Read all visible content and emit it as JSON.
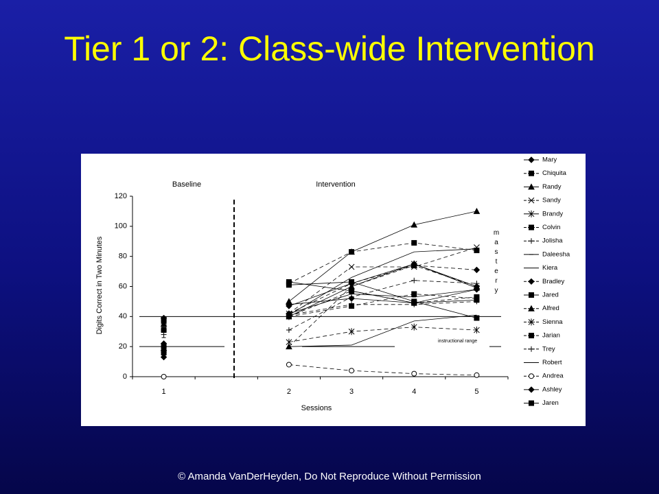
{
  "title": "Tier 1 or 2: Class-wide Intervention",
  "footer": "© Amanda VanDerHeyden, Do Not Reproduce Without Permission",
  "chart_data": {
    "type": "line",
    "y_label": "Digits Correct in Two Minutes",
    "x_label": "Sessions",
    "annotations": {
      "baseline": "Baseline",
      "intervention": "Intervention",
      "mastery": "mastery",
      "instructional": "instructional range"
    },
    "categories": [
      "1",
      null,
      "2",
      "3",
      "4",
      "5"
    ],
    "ylim": [
      0,
      120
    ],
    "yticks": [
      0,
      20,
      40,
      60,
      80,
      100,
      120
    ],
    "reference_lines": [
      40,
      20
    ],
    "color": "#000000",
    "series": [
      {
        "name": "Mary",
        "marker": "diamond",
        "dashed": false,
        "values": [
          39,
          null,
          47,
          62,
          75,
          60
        ]
      },
      {
        "name": "Chiquita",
        "marker": "square",
        "dashed": true,
        "values": [
          37,
          null,
          62,
          83,
          89,
          84
        ]
      },
      {
        "name": "Randy",
        "marker": "triangle",
        "dashed": false,
        "values": [
          35,
          null,
          50,
          83,
          101,
          110
        ]
      },
      {
        "name": "Sandy",
        "marker": "x",
        "dashed": true,
        "values": [
          33,
          null,
          42,
          73,
          73,
          86
        ]
      },
      {
        "name": "Brandy",
        "marker": "star",
        "dashed": false,
        "values": [
          32,
          null,
          40,
          60,
          75,
          59
        ]
      },
      {
        "name": "Colvin",
        "marker": "square",
        "dashed": true,
        "values": [
          31,
          null,
          40,
          47,
          55,
          52
        ]
      },
      {
        "name": "Jolisha",
        "marker": "plus",
        "dashed": true,
        "values": [
          28,
          null,
          31,
          53,
          64,
          62
        ]
      },
      {
        "name": "Daleesha",
        "marker": "dash",
        "dashed": false,
        "values": [
          26,
          null,
          42,
          55,
          53,
          58
        ]
      },
      {
        "name": "Kiera",
        "marker": "none",
        "dashed": false,
        "values": [
          24,
          null,
          41,
          66,
          83,
          85
        ]
      },
      {
        "name": "Bradley",
        "marker": "diamond",
        "dashed": true,
        "values": [
          22,
          null,
          42,
          62,
          74,
          71
        ]
      },
      {
        "name": "Jared",
        "marker": "square",
        "dashed": false,
        "values": [
          20,
          null,
          61,
          63,
          50,
          39
        ]
      },
      {
        "name": "Alfred",
        "marker": "triangle",
        "dashed": true,
        "values": [
          19,
          null,
          20,
          60,
          74,
          60
        ]
      },
      {
        "name": "Sienna",
        "marker": "star",
        "dashed": true,
        "values": [
          18,
          null,
          23,
          30,
          33,
          31
        ]
      },
      {
        "name": "Jarian",
        "marker": "square",
        "dashed": true,
        "values": [
          16,
          null,
          40,
          57,
          49,
          53
        ]
      },
      {
        "name": "Trey",
        "marker": "plus",
        "dashed": true,
        "values": [
          15,
          null,
          41,
          48,
          48,
          50
        ]
      },
      {
        "name": "Robert",
        "marker": "none",
        "dashed": false,
        "values": [
          14,
          null,
          20,
          21,
          37,
          41
        ]
      },
      {
        "name": "Andrea",
        "marker": "open",
        "dashed": true,
        "values": [
          0,
          null,
          8,
          4,
          2,
          1
        ]
      },
      {
        "name": "Ashley",
        "marker": "diamond",
        "dashed": false,
        "values": [
          13,
          null,
          48,
          52,
          49,
          58
        ]
      },
      {
        "name": "Jaren",
        "marker": "square",
        "dashed": false,
        "values": [
          38,
          null,
          63,
          57,
          49,
          51
        ]
      }
    ]
  }
}
